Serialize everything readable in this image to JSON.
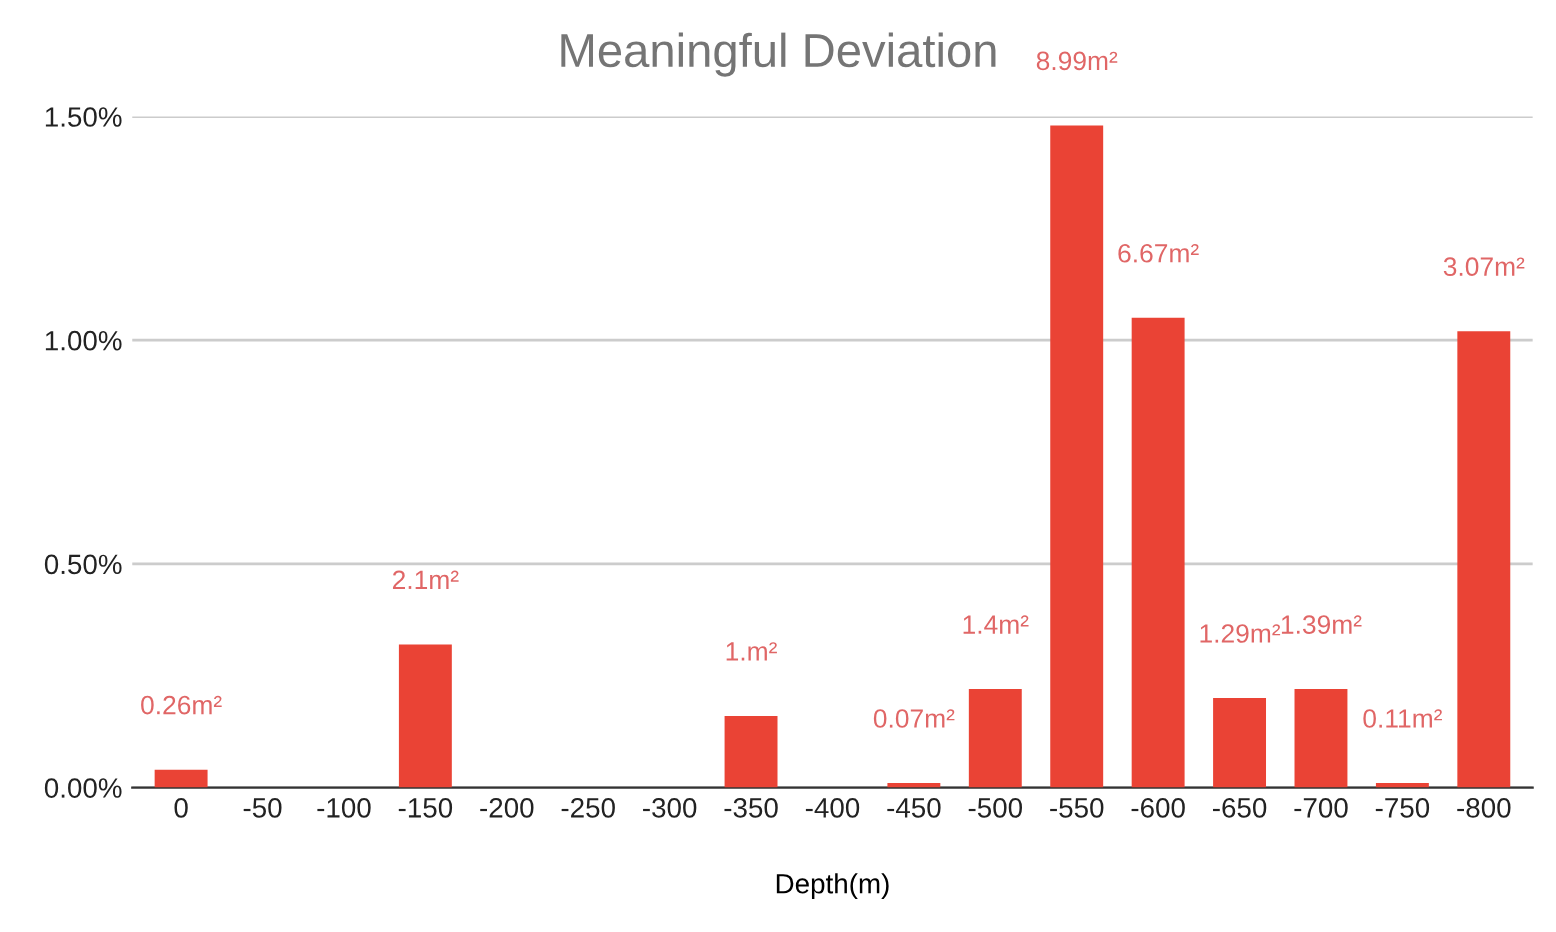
{
  "chart_data": {
    "type": "bar",
    "title": "Meaningful Deviation",
    "xlabel": "Depth(m)",
    "categories": [
      "0",
      "-50",
      "-100",
      "-150",
      "-200",
      "-250",
      "-300",
      "-350",
      "-400",
      "-450",
      "-500",
      "-550",
      "-600",
      "-650",
      "-700",
      "-750",
      "-800"
    ],
    "values": [
      0.04,
      null,
      null,
      0.32,
      null,
      null,
      null,
      0.16,
      null,
      0.01,
      0.22,
      1.48,
      1.05,
      0.2,
      0.22,
      0.01,
      1.02
    ],
    "annotations": [
      {
        "text": "0.26m²",
        "x": "0",
        "y": 0.04
      },
      {
        "text": "2.1m²",
        "x": "-150",
        "y": 0.32
      },
      {
        "text": "1.m²",
        "x": "-350",
        "y": 0.16
      },
      {
        "text": "0.07m²",
        "x": "-450",
        "y": 0.01
      },
      {
        "text": "1.4m²",
        "x": "-500",
        "y": 0.22
      },
      {
        "text": "8.99m²",
        "x": "-550",
        "y": 1.48
      },
      {
        "text": "6.67m²",
        "x": "-600",
        "y": 1.05
      },
      {
        "text": "1.29m²",
        "x": "-650",
        "y": 0.2
      },
      {
        "text": "1.39m²",
        "x": "-700",
        "y": 0.22
      },
      {
        "text": "0.11m²",
        "x": "-750",
        "y": 0.01
      },
      {
        "text": "3.07m²",
        "x": "-800",
        "y": 1.02
      }
    ],
    "color": "#ea4335",
    "ylim": [
      0,
      1.5
    ],
    "yticks": [
      {
        "value": 0,
        "label": "0.00%"
      },
      {
        "value": 0.5,
        "label": "0.50%"
      },
      {
        "value": 1.0,
        "label": "1.00%"
      },
      {
        "value": 1.5,
        "label": "1.50%"
      }
    ],
    "grid": "y"
  }
}
